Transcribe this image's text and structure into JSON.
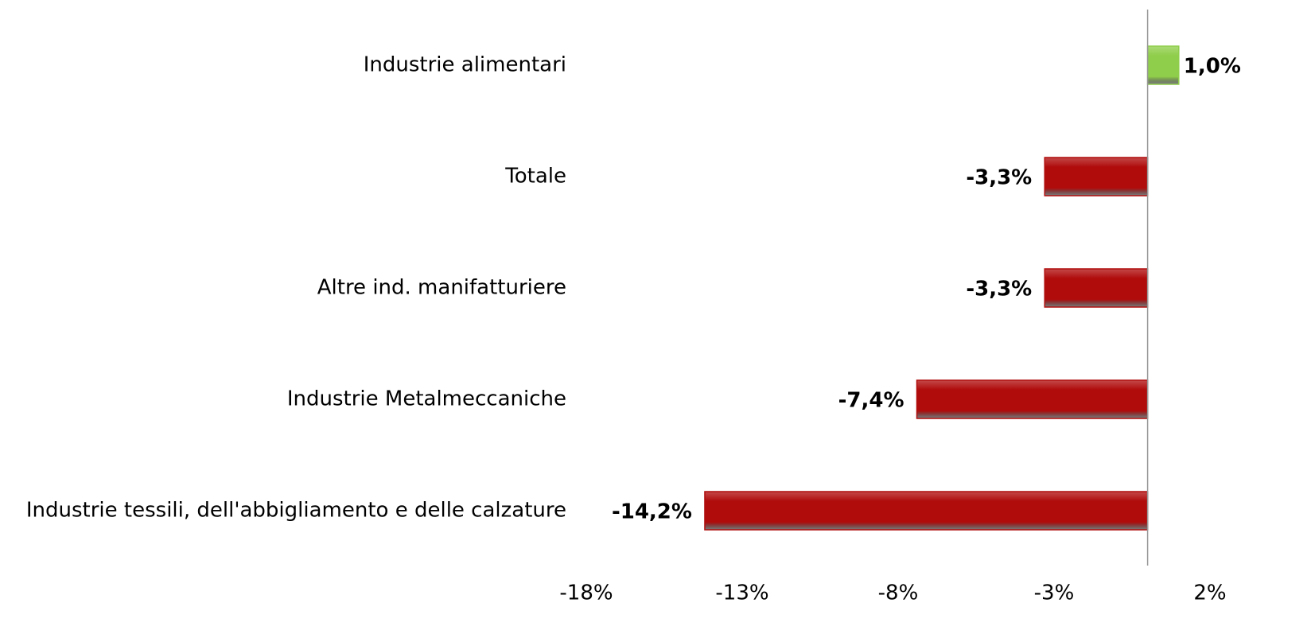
{
  "chart_data": {
    "type": "hbar",
    "categories": [
      "Industrie alimentari",
      "Totale",
      "Altre ind. manifatturiere",
      "Industrie Metalmeccaniche",
      "Industrie tessili, dell'abbigliamento e delle calzature"
    ],
    "values": [
      1.0,
      -3.3,
      -3.3,
      -7.4,
      -14.2
    ],
    "value_labels": [
      "1,0%",
      "-3,3%",
      "-3,3%",
      "-7,4%",
      "-14,2%"
    ],
    "colors": [
      "#8fce4a",
      "#b00c0c",
      "#b00c0c",
      "#b00c0c",
      "#b00c0c"
    ],
    "xlim": [
      -18,
      2
    ],
    "xticks": [
      {
        "value": -18,
        "label": "-18%"
      },
      {
        "value": -13,
        "label": "-13%"
      },
      {
        "value": -8,
        "label": "-8%"
      },
      {
        "value": -3,
        "label": "-3%"
      },
      {
        "value": 2,
        "label": "2%"
      }
    ],
    "grid": false
  }
}
